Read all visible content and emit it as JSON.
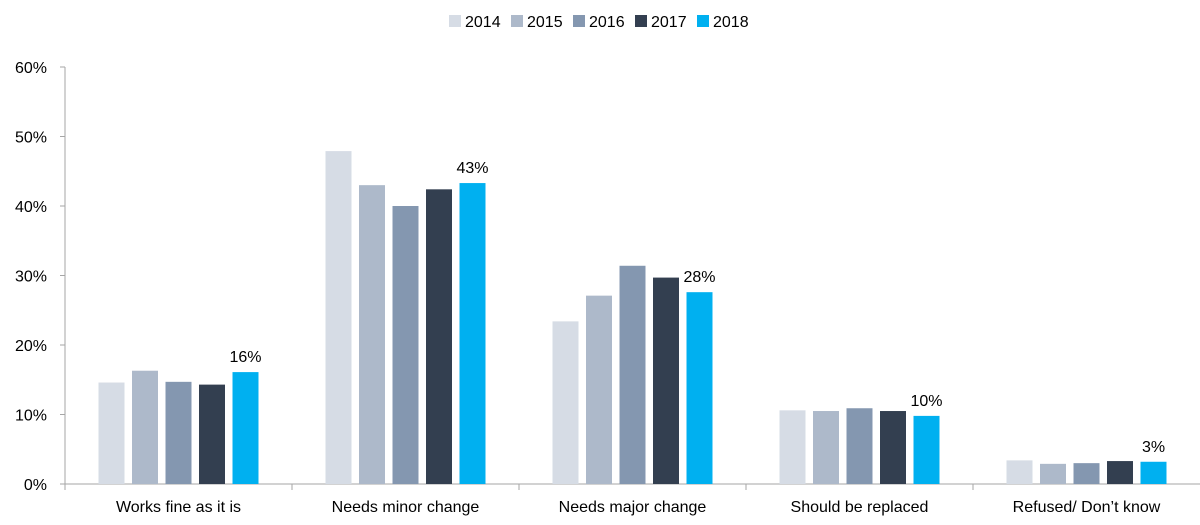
{
  "chart_data": {
    "type": "bar",
    "categories": [
      "Works fine as it is",
      "Needs minor change",
      "Needs major change",
      "Should be replaced",
      "Refused/ Don’t know"
    ],
    "series": [
      {
        "name": "2014",
        "color": "#d6dce5",
        "values": [
          14.6,
          47.9,
          23.4,
          10.6,
          3.4
        ]
      },
      {
        "name": "2015",
        "color": "#adb9ca",
        "values": [
          16.3,
          43.0,
          27.1,
          10.5,
          2.9
        ]
      },
      {
        "name": "2016",
        "color": "#8497b0",
        "values": [
          14.7,
          40.0,
          31.4,
          10.9,
          3.0
        ]
      },
      {
        "name": "2017",
        "color": "#333f50",
        "values": [
          14.3,
          42.4,
          29.7,
          10.5,
          3.3
        ]
      },
      {
        "name": "2018",
        "color": "#00b0f0",
        "values": [
          16.1,
          43.3,
          27.6,
          9.8,
          3.2
        ]
      }
    ],
    "data_labels": {
      "series": "2018",
      "labels": [
        "16%",
        "43%",
        "28%",
        "10%",
        "3%"
      ]
    },
    "y_ticks": [
      "0%",
      "10%",
      "20%",
      "30%",
      "40%",
      "50%",
      "60%"
    ],
    "ylim": [
      0,
      60
    ],
    "grid": false,
    "legend_position": "top-center",
    "title": "",
    "xlabel": "",
    "ylabel": ""
  }
}
